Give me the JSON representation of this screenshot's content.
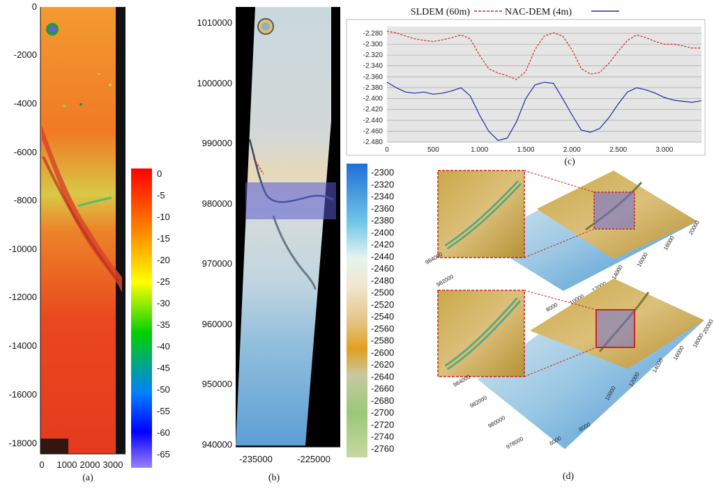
{
  "captions": {
    "a": "(a)",
    "b": "(b)",
    "c": "(c)",
    "d": "(d)"
  },
  "colors": {
    "sldem": "#d42020",
    "nacdem": "#1a2a9c",
    "accent_red": "#cc2222",
    "selection": "#5a5ad0"
  },
  "panel_a": {
    "y_ticks": [
      "0",
      "-2000",
      "-4000",
      "-6000",
      "-8000",
      "-10000",
      "-12000",
      "-14000",
      "-16000",
      "-18000"
    ],
    "x_ticks": [
      "0",
      "1000",
      "2000",
      "3000"
    ],
    "colorbar_labels": [
      "0",
      "-5",
      "-10",
      "-15",
      "-20",
      "-25",
      "-30",
      "-35",
      "-40",
      "-45",
      "-50",
      "-55",
      "-60",
      "-65"
    ]
  },
  "panel_b": {
    "y_ticks": [
      "1010000",
      "1000000",
      "990000",
      "980000",
      "970000",
      "960000",
      "950000",
      "940000"
    ],
    "x_ticks": [
      "-235000",
      "-225000"
    ],
    "colorbar_labels": [
      "-2300",
      "-2320",
      "-2340",
      "-2360",
      "-2380",
      "-2400",
      "-2420",
      "-2440",
      "-2460",
      "-2480",
      "-2500",
      "-2520",
      "-2540",
      "-2560",
      "-2580",
      "-2600",
      "-2620",
      "-2640",
      "-2660",
      "-2680",
      "-2700",
      "-2720",
      "-2740",
      "-2760"
    ]
  },
  "panel_d": {
    "top_axis_right": [
      "10000",
      "12000",
      "14000",
      "16000",
      "18000",
      "20000"
    ],
    "top_axis_left": [
      "984000",
      "982000"
    ],
    "top_axis_front": [
      "6000",
      "8000"
    ],
    "bottom_axis_right": [
      "10000",
      "12000",
      "14000",
      "16000",
      "18000",
      "20000"
    ],
    "bottom_axis_left": [
      "984000",
      "982000",
      "980000",
      "978000"
    ],
    "bottom_axis_front": [
      "6000",
      "8000"
    ]
  },
  "chart_data": {
    "type": "line",
    "legend": [
      "SLDEM (60m)",
      "NAC-DEM (4m)"
    ],
    "legend_placement": "top",
    "grid": true,
    "xlim": [
      0,
      3400
    ],
    "ylim": [
      -2.48,
      -2.27
    ],
    "x_tick_labels": [
      "0",
      "500",
      "1.000",
      "1.500",
      "2.000",
      "2.500",
      "3.000"
    ],
    "x_tick_values": [
      0,
      500,
      1000,
      1500,
      2000,
      2500,
      3000
    ],
    "y_tick_labels": [
      "-2.280",
      "-2.300",
      "-2.320",
      "-2.340",
      "-2.360",
      "-2.380",
      "-2.400",
      "-2.420",
      "-2.440",
      "-2.460",
      "-2.480"
    ],
    "y_tick_values": [
      -2.28,
      -2.3,
      -2.32,
      -2.34,
      -2.36,
      -2.38,
      -2.4,
      -2.42,
      -2.44,
      -2.46,
      -2.48
    ],
    "series": [
      {
        "name": "SLDEM (60m)",
        "style": "dashed",
        "x": [
          0,
          100,
          200,
          300,
          400,
          500,
          600,
          700,
          800,
          900,
          1000,
          1100,
          1200,
          1300,
          1400,
          1500,
          1600,
          1700,
          1800,
          1900,
          2000,
          2100,
          2200,
          2300,
          2400,
          2500,
          2600,
          2700,
          2800,
          2900,
          3000,
          3100,
          3200,
          3300,
          3400
        ],
        "y": [
          -2.276,
          -2.279,
          -2.285,
          -2.29,
          -2.293,
          -2.295,
          -2.292,
          -2.288,
          -2.283,
          -2.29,
          -2.32,
          -2.345,
          -2.353,
          -2.358,
          -2.365,
          -2.35,
          -2.31,
          -2.285,
          -2.279,
          -2.285,
          -2.31,
          -2.345,
          -2.355,
          -2.352,
          -2.335,
          -2.313,
          -2.293,
          -2.283,
          -2.288,
          -2.295,
          -2.3,
          -2.3,
          -2.303,
          -2.307,
          -2.307
        ]
      },
      {
        "name": "NAC-DEM (4m)",
        "style": "solid",
        "x": [
          0,
          100,
          200,
          300,
          400,
          500,
          600,
          700,
          800,
          900,
          1000,
          1100,
          1200,
          1300,
          1400,
          1500,
          1600,
          1700,
          1800,
          1900,
          2000,
          2100,
          2200,
          2300,
          2400,
          2500,
          2600,
          2700,
          2800,
          2900,
          3000,
          3100,
          3200,
          3300,
          3400
        ],
        "y": [
          -2.37,
          -2.38,
          -2.388,
          -2.39,
          -2.388,
          -2.392,
          -2.39,
          -2.386,
          -2.38,
          -2.395,
          -2.43,
          -2.46,
          -2.477,
          -2.473,
          -2.443,
          -2.4,
          -2.375,
          -2.37,
          -2.372,
          -2.4,
          -2.43,
          -2.458,
          -2.462,
          -2.455,
          -2.435,
          -2.41,
          -2.388,
          -2.38,
          -2.384,
          -2.39,
          -2.398,
          -2.403,
          -2.405,
          -2.407,
          -2.404
        ]
      }
    ]
  }
}
